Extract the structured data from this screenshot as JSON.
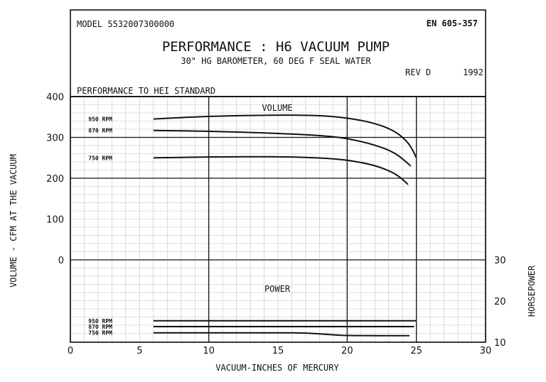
{
  "header": {
    "model": "MODEL 5532007300000",
    "doc_number": "EN 605-357",
    "title": "PERFORMANCE : H6 VACUUM PUMP",
    "subtitle": "30\" HG BAROMETER, 60 DEG F SEAL WATER",
    "revision": "REV D",
    "year": "1992",
    "standard": "PERFORMANCE TO HEI STANDARD"
  },
  "chart_data": [
    {
      "type": "line",
      "section_label": "VOLUME",
      "xlabel": "VACUUM-INCHES OF MERCURY",
      "ylabel": "VOLUME - CFM AT THE VACUUM",
      "xlim": [
        0,
        30
      ],
      "ylim": [
        0,
        400
      ],
      "x_ticks": [
        "0",
        "5",
        "10",
        "15",
        "20",
        "25",
        "30"
      ],
      "y_ticks": [
        "0",
        "100",
        "200",
        "300",
        "400"
      ],
      "grid": true,
      "series": [
        {
          "name": "950 RPM",
          "x": [
            6,
            10,
            15,
            18,
            20,
            22,
            23.5,
            24.5,
            25
          ],
          "y": [
            345,
            352,
            355,
            354,
            348,
            335,
            315,
            285,
            250
          ]
        },
        {
          "name": "870 RPM",
          "x": [
            6,
            10,
            15,
            18,
            20,
            22,
            23.5,
            24.6
          ],
          "y": [
            317,
            315,
            310,
            305,
            298,
            282,
            262,
            230
          ]
        },
        {
          "name": "750 RPM",
          "x": [
            6,
            10,
            15,
            18,
            20,
            22,
            23.5,
            24.4
          ],
          "y": [
            250,
            252,
            253,
            250,
            245,
            232,
            212,
            185
          ]
        }
      ]
    },
    {
      "type": "line",
      "section_label": "POWER",
      "ylabel": "HORSEPOWER",
      "xlim": [
        0,
        30
      ],
      "ylim": [
        10,
        30
      ],
      "y_ticks": [
        "10",
        "20",
        "30"
      ],
      "grid": true,
      "series": [
        {
          "name": "950 RPM",
          "x": [
            6,
            10,
            15,
            20,
            25
          ],
          "y": [
            15.2,
            15.2,
            15.2,
            15.2,
            15.2
          ]
        },
        {
          "name": "870 RPM",
          "x": [
            6,
            10,
            15,
            20,
            24.8
          ],
          "y": [
            13.8,
            13.8,
            13.8,
            13.8,
            13.8
          ]
        },
        {
          "name": "750 RPM",
          "x": [
            6,
            10,
            15,
            17,
            19,
            20,
            24.5
          ],
          "y": [
            12.3,
            12.3,
            12.3,
            12.3,
            11.8,
            11.6,
            11.6
          ]
        }
      ]
    }
  ]
}
